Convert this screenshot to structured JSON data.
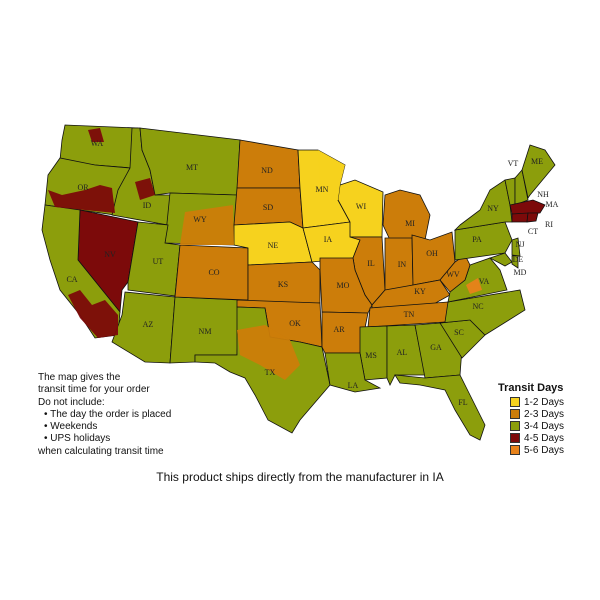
{
  "legend": {
    "title": "Transit Days",
    "items": [
      {
        "label": "1-2 Days",
        "color": "#f6d21e"
      },
      {
        "label": "2-3 Days",
        "color": "#cc7d0a"
      },
      {
        "label": "3-4 Days",
        "color": "#8c9e0c"
      },
      {
        "label": "4-5 Days",
        "color": "#7c0a0a"
      },
      {
        "label": "5-6 Days",
        "color": "#e8821a"
      }
    ]
  },
  "note": {
    "lines": [
      "The map gives the",
      "transit time for your order",
      "Do not include:"
    ],
    "bullets": [
      "The day the order is placed",
      "Weekends",
      "UPS holidays"
    ],
    "footer": "when calculating transit time"
  },
  "caption": "This product ships directly from the manufacturer in IA",
  "states": [
    {
      "abbr": "WA",
      "days": "3-4 Days"
    },
    {
      "abbr": "OR",
      "days": "3-4 Days"
    },
    {
      "abbr": "ID",
      "days": "3-4 Days"
    },
    {
      "abbr": "MT",
      "days": "3-4 Days"
    },
    {
      "abbr": "WY",
      "days": "3-4 Days"
    },
    {
      "abbr": "NV",
      "days": "4-5 Days"
    },
    {
      "abbr": "CA",
      "days": "3-4 Days"
    },
    {
      "abbr": "UT",
      "days": "3-4 Days"
    },
    {
      "abbr": "AZ",
      "days": "3-4 Days"
    },
    {
      "abbr": "NM",
      "days": "3-4 Days"
    },
    {
      "abbr": "CO",
      "days": "2-3 Days"
    },
    {
      "abbr": "ND",
      "days": "2-3 Days"
    },
    {
      "abbr": "SD",
      "days": "2-3 Days"
    },
    {
      "abbr": "NE",
      "days": "1-2 Days"
    },
    {
      "abbr": "KS",
      "days": "2-3 Days"
    },
    {
      "abbr": "OK",
      "days": "2-3 Days"
    },
    {
      "abbr": "TX",
      "days": "3-4 Days"
    },
    {
      "abbr": "MN",
      "days": "1-2 Days"
    },
    {
      "abbr": "IA",
      "days": "1-2 Days"
    },
    {
      "abbr": "WI",
      "days": "1-2 Days"
    },
    {
      "abbr": "MI",
      "days": "2-3 Days"
    },
    {
      "abbr": "IL",
      "days": "2-3 Days"
    },
    {
      "abbr": "IN",
      "days": "2-3 Days"
    },
    {
      "abbr": "OH",
      "days": "2-3 Days"
    },
    {
      "abbr": "MO",
      "days": "2-3 Days"
    },
    {
      "abbr": "AR",
      "days": "2-3 Days"
    },
    {
      "abbr": "KY",
      "days": "2-3 Days"
    },
    {
      "abbr": "TN",
      "days": "2-3 Days"
    },
    {
      "abbr": "MS",
      "days": "3-4 Days"
    },
    {
      "abbr": "AL",
      "days": "3-4 Days"
    },
    {
      "abbr": "LA",
      "days": "3-4 Days"
    },
    {
      "abbr": "GA",
      "days": "3-4 Days"
    },
    {
      "abbr": "FL",
      "days": "3-4 Days"
    },
    {
      "abbr": "SC",
      "days": "3-4 Days"
    },
    {
      "abbr": "NC",
      "days": "3-4 Days"
    },
    {
      "abbr": "VA",
      "days": "3-4 Days"
    },
    {
      "abbr": "WV",
      "days": "2-3 Days"
    },
    {
      "abbr": "PA",
      "days": "3-4 Days"
    },
    {
      "abbr": "NY",
      "days": "3-4 Days"
    },
    {
      "abbr": "MD",
      "days": "3-4 Days"
    },
    {
      "abbr": "DE",
      "days": "3-4 Days"
    },
    {
      "abbr": "NJ",
      "days": "3-4 Days"
    },
    {
      "abbr": "VT",
      "days": "3-4 Days"
    },
    {
      "abbr": "NH",
      "days": "3-4 Days"
    },
    {
      "abbr": "ME",
      "days": "3-4 Days"
    },
    {
      "abbr": "MA",
      "days": "4-5 Days"
    },
    {
      "abbr": "CT",
      "days": "4-5 Days"
    },
    {
      "abbr": "RI",
      "days": "4-5 Days"
    }
  ]
}
